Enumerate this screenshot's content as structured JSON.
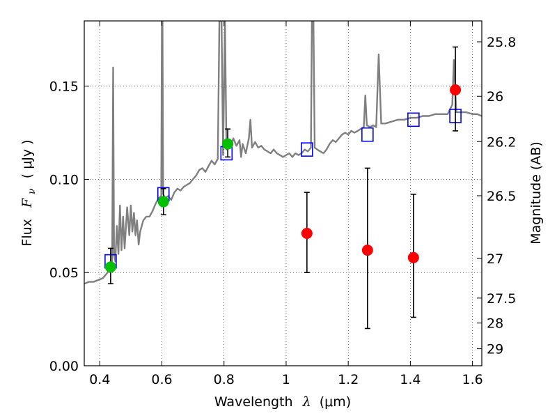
{
  "chart_data": {
    "type": "line",
    "xlabel_prefix": "Wavelength",
    "xlabel_symbol": "λ",
    "xlabel_unit": "(μm)",
    "ylabel_prefix": "Flux",
    "ylabel_symbol": "F",
    "ylabel_subscript": "ν",
    "ylabel_unit": "( μJy )",
    "y2label": "Magnitude (AB)",
    "xlim": [
      0.35,
      1.63
    ],
    "ylim": [
      0,
      0.185
    ],
    "grid": true,
    "x_ticks": [
      {
        "value": 0.4,
        "label": "0.4"
      },
      {
        "value": 0.6,
        "label": "0.6"
      },
      {
        "value": 0.8,
        "label": "0.8"
      },
      {
        "value": 1.0,
        "label": "1"
      },
      {
        "value": 1.2,
        "label": "1.2"
      },
      {
        "value": 1.4,
        "label": "1.4"
      },
      {
        "value": 1.6,
        "label": "1.6"
      }
    ],
    "y_ticks": [
      {
        "value": 0.0,
        "label": "0.00"
      },
      {
        "value": 0.05,
        "label": "0.05"
      },
      {
        "value": 0.1,
        "label": "0.10"
      },
      {
        "value": 0.15,
        "label": "0.15"
      }
    ],
    "y2_ticks": [
      {
        "value": 25.8,
        "label": "25.8"
      },
      {
        "value": 26.0,
        "label": "26"
      },
      {
        "value": 26.2,
        "label": "26.2"
      },
      {
        "value": 26.5,
        "label": "26.5"
      },
      {
        "value": 27.0,
        "label": "27"
      },
      {
        "value": 27.5,
        "label": "27.5"
      },
      {
        "value": 28.0,
        "label": "28"
      },
      {
        "value": 29.0,
        "label": "29"
      }
    ],
    "series": [
      {
        "style": "line",
        "color": "#7f7f7f",
        "points": [
          [
            0.35,
            0.044
          ],
          [
            0.365,
            0.045
          ],
          [
            0.38,
            0.045
          ],
          [
            0.395,
            0.046
          ],
          [
            0.41,
            0.047
          ],
          [
            0.425,
            0.05
          ],
          [
            0.435,
            0.053
          ],
          [
            0.44,
            0.056
          ],
          [
            0.443,
            0.16
          ],
          [
            0.446,
            0.06
          ],
          [
            0.45,
            0.056
          ],
          [
            0.455,
            0.075
          ],
          [
            0.46,
            0.06
          ],
          [
            0.465,
            0.086
          ],
          [
            0.47,
            0.062
          ],
          [
            0.475,
            0.08
          ],
          [
            0.48,
            0.063
          ],
          [
            0.488,
            0.085
          ],
          [
            0.495,
            0.07
          ],
          [
            0.5,
            0.086
          ],
          [
            0.505,
            0.072
          ],
          [
            0.51,
            0.082
          ],
          [
            0.515,
            0.07
          ],
          [
            0.52,
            0.078
          ],
          [
            0.525,
            0.065
          ],
          [
            0.53,
            0.072
          ],
          [
            0.54,
            0.078
          ],
          [
            0.55,
            0.08
          ],
          [
            0.56,
            0.08
          ],
          [
            0.57,
            0.083
          ],
          [
            0.58,
            0.087
          ],
          [
            0.59,
            0.09
          ],
          [
            0.598,
            0.091
          ],
          [
            0.6,
            0.185
          ],
          [
            0.602,
            0.185
          ],
          [
            0.604,
            0.092
          ],
          [
            0.61,
            0.09
          ],
          [
            0.62,
            0.091
          ],
          [
            0.63,
            0.089
          ],
          [
            0.64,
            0.093
          ],
          [
            0.65,
            0.095
          ],
          [
            0.66,
            0.094
          ],
          [
            0.67,
            0.096
          ],
          [
            0.68,
            0.097
          ],
          [
            0.69,
            0.098
          ],
          [
            0.7,
            0.1
          ],
          [
            0.71,
            0.102
          ],
          [
            0.72,
            0.105
          ],
          [
            0.73,
            0.106
          ],
          [
            0.74,
            0.104
          ],
          [
            0.75,
            0.107
          ],
          [
            0.76,
            0.11
          ],
          [
            0.77,
            0.108
          ],
          [
            0.78,
            0.111
          ],
          [
            0.785,
            0.185
          ],
          [
            0.792,
            0.185
          ],
          [
            0.797,
            0.113
          ],
          [
            0.803,
            0.185
          ],
          [
            0.808,
            0.116
          ],
          [
            0.815,
            0.12
          ],
          [
            0.82,
            0.117
          ],
          [
            0.83,
            0.122
          ],
          [
            0.84,
            0.118
          ],
          [
            0.85,
            0.121
          ],
          [
            0.855,
            0.112
          ],
          [
            0.86,
            0.119
          ],
          [
            0.87,
            0.114
          ],
          [
            0.88,
            0.122
          ],
          [
            0.885,
            0.132
          ],
          [
            0.89,
            0.117
          ],
          [
            0.9,
            0.12
          ],
          [
            0.91,
            0.117
          ],
          [
            0.92,
            0.118
          ],
          [
            0.93,
            0.116
          ],
          [
            0.94,
            0.115
          ],
          [
            0.95,
            0.114
          ],
          [
            0.96,
            0.116
          ],
          [
            0.97,
            0.114
          ],
          [
            0.98,
            0.113
          ],
          [
            0.99,
            0.112
          ],
          [
            1.0,
            0.113
          ],
          [
            1.01,
            0.114
          ],
          [
            1.02,
            0.112
          ],
          [
            1.03,
            0.114
          ],
          [
            1.04,
            0.113
          ],
          [
            1.05,
            0.114
          ],
          [
            1.06,
            0.116
          ],
          [
            1.07,
            0.115
          ],
          [
            1.08,
            0.117
          ],
          [
            1.083,
            0.185
          ],
          [
            1.088,
            0.185
          ],
          [
            1.092,
            0.117
          ],
          [
            1.1,
            0.116
          ],
          [
            1.11,
            0.115
          ],
          [
            1.12,
            0.114
          ],
          [
            1.13,
            0.116
          ],
          [
            1.14,
            0.119
          ],
          [
            1.15,
            0.121
          ],
          [
            1.16,
            0.12
          ],
          [
            1.17,
            0.122
          ],
          [
            1.18,
            0.124
          ],
          [
            1.19,
            0.125
          ],
          [
            1.2,
            0.124
          ],
          [
            1.21,
            0.126
          ],
          [
            1.22,
            0.125
          ],
          [
            1.23,
            0.126
          ],
          [
            1.24,
            0.127
          ],
          [
            1.25,
            0.128
          ],
          [
            1.255,
            0.145
          ],
          [
            1.26,
            0.129
          ],
          [
            1.27,
            0.128
          ],
          [
            1.28,
            0.129
          ],
          [
            1.29,
            0.128
          ],
          [
            1.298,
            0.167
          ],
          [
            1.306,
            0.13
          ],
          [
            1.32,
            0.13
          ],
          [
            1.34,
            0.131
          ],
          [
            1.36,
            0.132
          ],
          [
            1.38,
            0.132
          ],
          [
            1.4,
            0.133
          ],
          [
            1.42,
            0.133
          ],
          [
            1.44,
            0.134
          ],
          [
            1.46,
            0.134
          ],
          [
            1.48,
            0.135
          ],
          [
            1.5,
            0.135
          ],
          [
            1.52,
            0.135
          ],
          [
            1.535,
            0.14
          ],
          [
            1.54,
            0.164
          ],
          [
            1.548,
            0.136
          ],
          [
            1.56,
            0.136
          ],
          [
            1.58,
            0.136
          ],
          [
            1.6,
            0.135
          ],
          [
            1.615,
            0.135
          ],
          [
            1.63,
            0.134
          ]
        ]
      },
      {
        "style": "open-square",
        "color": "#0000ff",
        "points": [
          [
            0.435,
            0.056
          ],
          [
            0.605,
            0.092
          ],
          [
            0.808,
            0.114
          ],
          [
            1.067,
            0.116
          ],
          [
            1.262,
            0.124
          ],
          [
            1.41,
            0.132
          ],
          [
            1.545,
            0.134
          ]
        ]
      },
      {
        "style": "filled-circle",
        "color": "#00c000",
        "points": [
          {
            "x": 0.435,
            "y": 0.053,
            "err": [
              0.044,
              0.063
            ]
          },
          {
            "x": 0.605,
            "y": 0.088,
            "err": [
              0.081,
              0.095
            ]
          },
          {
            "x": 0.812,
            "y": 0.119,
            "err": [
              0.112,
              0.127
            ]
          }
        ]
      },
      {
        "style": "filled-circle",
        "color": "#ff0000",
        "points": [
          {
            "x": 1.067,
            "y": 0.071,
            "err": [
              0.05,
              0.093
            ]
          },
          {
            "x": 1.262,
            "y": 0.062,
            "err": [
              0.02,
              0.106
            ]
          },
          {
            "x": 1.41,
            "y": 0.058,
            "err": [
              0.026,
              0.092
            ]
          },
          {
            "x": 1.545,
            "y": 0.148,
            "err": [
              0.126,
              0.171
            ]
          }
        ]
      }
    ]
  }
}
